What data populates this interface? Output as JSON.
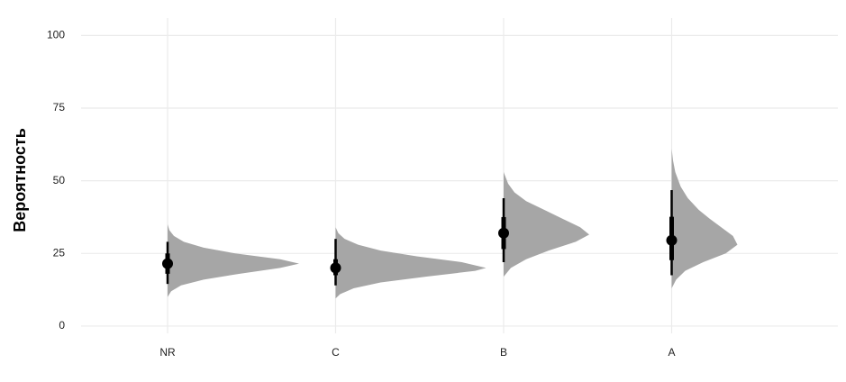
{
  "chart_data": {
    "type": "halfeye",
    "y_label": "Вероятность",
    "categories": [
      "NR",
      "C",
      "B",
      "A"
    ],
    "ylim": [
      -2.5,
      106
    ],
    "yticks": [
      0,
      25,
      50,
      75,
      100
    ],
    "grid": true,
    "density_color": "#a6a6a6",
    "point_color": "#000000",
    "groups": [
      {
        "point": 21.5,
        "interval_66": [
          18,
          25
        ],
        "interval_95": [
          14.5,
          29
        ],
        "density_y": [
          10,
          12,
          14,
          16,
          18,
          20,
          21.5,
          23,
          25,
          27,
          29,
          31,
          33,
          35
        ],
        "density": [
          0,
          0.04,
          0.15,
          0.4,
          0.8,
          1.25,
          1.46,
          1.25,
          0.75,
          0.4,
          0.18,
          0.07,
          0.02,
          0
        ]
      },
      {
        "point": 20,
        "interval_66": [
          17.5,
          23
        ],
        "interval_95": [
          14,
          30
        ],
        "density_y": [
          9.5,
          11,
          13,
          15,
          17,
          19,
          20,
          22,
          24,
          26,
          28,
          30,
          32,
          34
        ],
        "density": [
          0,
          0.05,
          0.2,
          0.5,
          1.0,
          1.55,
          1.67,
          1.4,
          0.9,
          0.5,
          0.25,
          0.1,
          0.03,
          0
        ]
      },
      {
        "point": 32,
        "interval_66": [
          26.5,
          37.5
        ],
        "interval_95": [
          22,
          44
        ],
        "density_y": [
          17,
          20,
          23,
          26,
          29,
          31.5,
          34,
          37,
          40,
          43,
          46,
          49,
          53
        ],
        "density": [
          0,
          0.08,
          0.25,
          0.5,
          0.8,
          0.95,
          0.85,
          0.65,
          0.45,
          0.25,
          0.12,
          0.05,
          0
        ]
      },
      {
        "point": 29.5,
        "interval_66": [
          22.7,
          37.6
        ],
        "interval_95": [
          17.5,
          46.8
        ],
        "density_y": [
          13,
          16,
          19,
          22,
          25,
          28,
          31,
          34,
          37,
          40,
          44,
          48,
          53,
          57,
          61
        ],
        "density": [
          0,
          0.05,
          0.15,
          0.35,
          0.6,
          0.73,
          0.68,
          0.55,
          0.42,
          0.3,
          0.18,
          0.1,
          0.04,
          0.015,
          0
        ]
      }
    ]
  }
}
